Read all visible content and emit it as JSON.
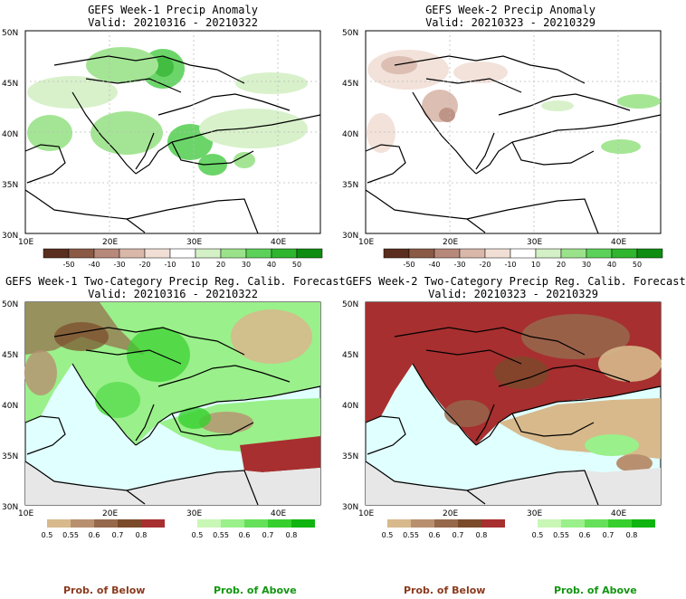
{
  "panels": [
    {
      "title": "GEFS Week-1 Precip Anomaly",
      "valid": "Valid: 20210316 - 20210322"
    },
    {
      "title": "GEFS Week-2 Precip Anomaly",
      "valid": "Valid: 20210323 - 20210329"
    },
    {
      "title": "GEFS Week-1 Two-Category Precip Reg. Calib. Forecast",
      "valid": "Valid: 20210316 - 20210322"
    },
    {
      "title": "GEFS Week-2 Two-Category Precip Reg. Calib. Forecast",
      "valid": "Valid: 20210323 - 20210329"
    }
  ],
  "axes": {
    "lat_labels": [
      "30N",
      "35N",
      "40N",
      "45N",
      "50N"
    ],
    "lon_labels": [
      "10E",
      "20E",
      "30E",
      "40E"
    ]
  },
  "anomaly_colorbar": {
    "labels": [
      "-50",
      "-40",
      "-30",
      "-20",
      "-10",
      "10",
      "20",
      "30",
      "40",
      "50"
    ],
    "colors": [
      "#5a2e1e",
      "#8a5a44",
      "#b7897a",
      "#d9b8aa",
      "#f1dfd6",
      "#ffffff",
      "#d4f0c6",
      "#9be38a",
      "#5cd159",
      "#2fb52e",
      "#0f8d10"
    ]
  },
  "prob_colorbars": {
    "below_labels": [
      "0.5",
      "0.55",
      "0.6",
      "0.7",
      "0.8"
    ],
    "above_labels": [
      "0.5",
      "0.55",
      "0.6",
      "0.7",
      "0.8"
    ],
    "below_colors": [
      "#d7b98c",
      "#b89070",
      "#96684c",
      "#7a4a2a",
      "#a72f2f"
    ],
    "above_colors": [
      "#c9f7b6",
      "#9af08a",
      "#66e05a",
      "#36cf2e",
      "#10b410"
    ]
  },
  "bottom_labels": {
    "below": "Prob. of Below",
    "above": "Prob. of Above"
  },
  "colors": {
    "below_text": "#8b3a1e",
    "above_text": "#119611",
    "sea": "#e0ffff",
    "dry_gray": "#e7e7e7"
  }
}
